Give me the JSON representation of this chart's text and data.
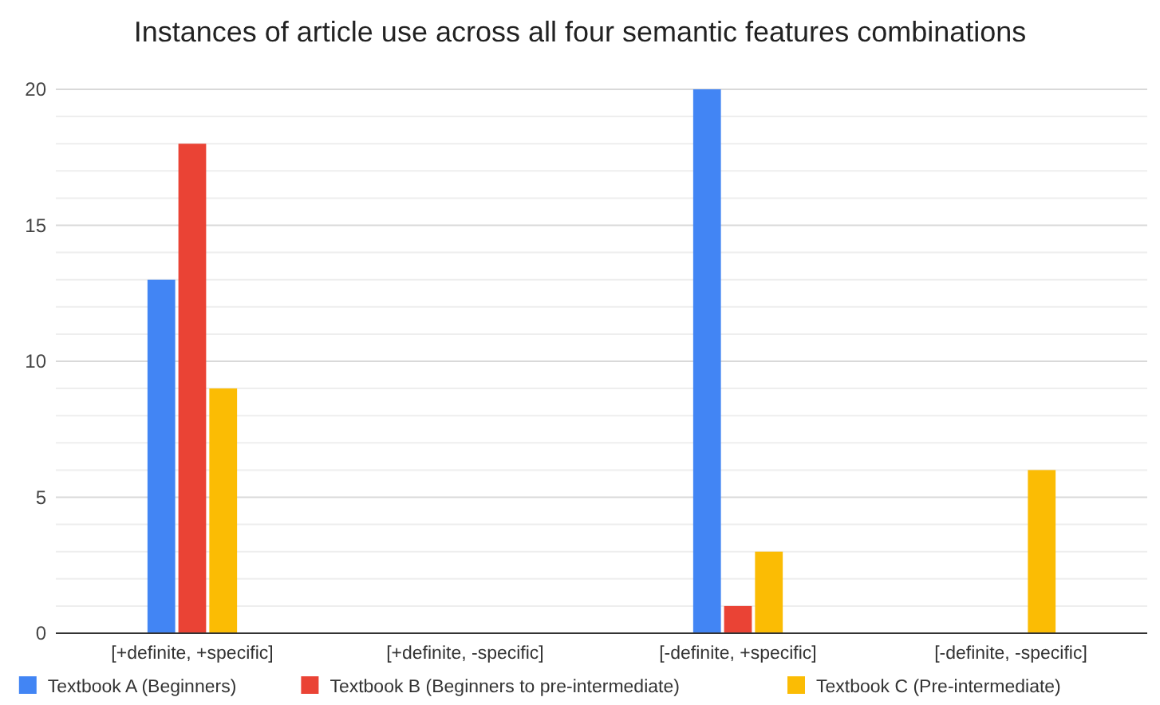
{
  "chart_data": {
    "type": "bar",
    "title": "Instances of article use across all four semantic features combinations",
    "categories": [
      "[+definite, +specific]",
      "[+definite, -specific]",
      "[-definite, +specific]",
      "[-definite, -specific]"
    ],
    "series": [
      {
        "name": "Textbook A (Beginners)",
        "color": "#4285f4",
        "values": [
          13,
          0,
          20,
          0
        ]
      },
      {
        "name": "Textbook B (Beginners to pre-intermediate)",
        "color": "#ea4335",
        "values": [
          18,
          0,
          1,
          0
        ]
      },
      {
        "name": "Textbook C (Pre-intermediate)",
        "color": "#fbbc04",
        "values": [
          9,
          0,
          3,
          6
        ]
      }
    ],
    "ylim": [
      0,
      20
    ],
    "yticks": [
      0,
      {
        "value": 1,
        "label": null
      },
      {
        "value": 2,
        "label": null
      },
      {
        "value": 3,
        "label": null
      },
      {
        "value": 4,
        "label": null
      },
      5,
      {
        "value": 6,
        "label": null
      },
      {
        "value": 7,
        "label": null
      },
      {
        "value": 8,
        "label": null
      },
      {
        "value": 9,
        "label": null
      },
      10,
      {
        "value": 11,
        "label": null
      },
      {
        "value": 12,
        "label": null
      },
      {
        "value": 13,
        "label": null
      },
      {
        "value": 14,
        "label": null
      },
      15,
      {
        "value": 16,
        "label": null
      },
      {
        "value": 17,
        "label": null
      },
      {
        "value": 18,
        "label": null
      },
      {
        "value": 19,
        "label": null
      },
      20
    ],
    "grid": true,
    "legend": "bottom"
  }
}
